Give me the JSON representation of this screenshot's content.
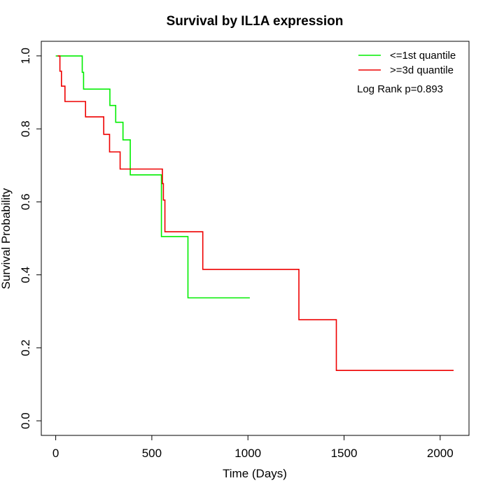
{
  "chart_data": {
    "type": "line",
    "title": "Survival by IL1A expression",
    "xlabel": "Time (Days)",
    "ylabel": "Survival Probability",
    "xlim": [
      -75,
      2150
    ],
    "ylim": [
      -0.04,
      1.04
    ],
    "xticks": [
      0,
      500,
      1000,
      1500,
      2000
    ],
    "yticks": [
      0.0,
      0.2,
      0.4,
      0.6,
      0.8,
      1.0
    ],
    "xtick_labels": [
      "0",
      "500",
      "1000",
      "1500",
      "2000"
    ],
    "ytick_labels": [
      "0.0",
      "0.2",
      "0.4",
      "0.6",
      "0.8",
      "1.0"
    ],
    "grid": false,
    "legend_position": "top-right",
    "annotation": "Log Rank p=0.893",
    "series": [
      {
        "name": "<=1st quantile",
        "color": "#00ee00",
        "step": "post",
        "x": [
          0,
          138,
          145,
          282,
          312,
          350,
          388,
          550,
          688,
          1010
        ],
        "y": [
          1.0,
          0.955,
          0.909,
          0.864,
          0.818,
          0.77,
          0.674,
          0.505,
          0.337,
          0.337
        ]
      },
      {
        "name": ">=3d quantile",
        "color": "#ee0000",
        "step": "post",
        "x": [
          10,
          22,
          30,
          48,
          155,
          250,
          280,
          335,
          555,
          560,
          568,
          765,
          1265,
          1460,
          2070
        ],
        "y": [
          1.0,
          0.958,
          0.917,
          0.875,
          0.833,
          0.785,
          0.737,
          0.69,
          0.65,
          0.605,
          0.518,
          0.415,
          0.277,
          0.138,
          0.138
        ]
      }
    ]
  }
}
